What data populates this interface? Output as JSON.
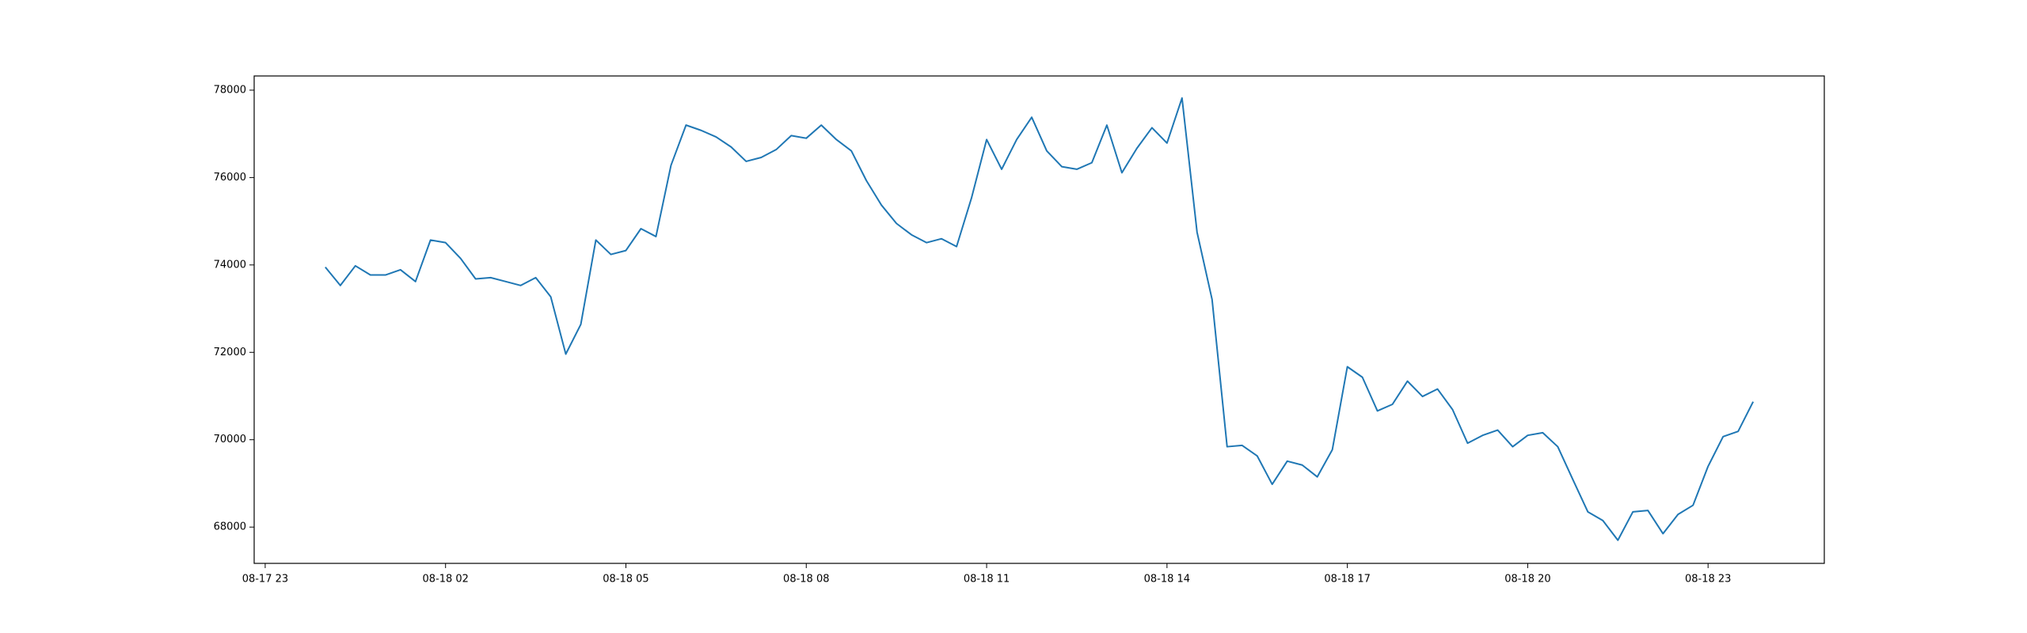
{
  "chart_data": {
    "type": "line",
    "x": [
      "08-18 00:00",
      "08-18 00:15",
      "08-18 00:30",
      "08-18 00:45",
      "08-18 01:00",
      "08-18 01:15",
      "08-18 01:30",
      "08-18 01:45",
      "08-18 02:00",
      "08-18 02:15",
      "08-18 02:30",
      "08-18 02:45",
      "08-18 03:00",
      "08-18 03:15",
      "08-18 03:30",
      "08-18 03:45",
      "08-18 04:00",
      "08-18 04:15",
      "08-18 04:30",
      "08-18 04:45",
      "08-18 05:00",
      "08-18 05:15",
      "08-18 05:30",
      "08-18 05:45",
      "08-18 06:00",
      "08-18 06:15",
      "08-18 06:30",
      "08-18 06:45",
      "08-18 07:00",
      "08-18 07:15",
      "08-18 07:30",
      "08-18 07:45",
      "08-18 08:00",
      "08-18 08:15",
      "08-18 08:30",
      "08-18 08:45",
      "08-18 09:00",
      "08-18 09:15",
      "08-18 09:30",
      "08-18 09:45",
      "08-18 10:00",
      "08-18 10:15",
      "08-18 10:30",
      "08-18 10:45",
      "08-18 11:00",
      "08-18 11:15",
      "08-18 11:30",
      "08-18 11:45",
      "08-18 12:00",
      "08-18 12:15",
      "08-18 12:30",
      "08-18 12:45",
      "08-18 13:00",
      "08-18 13:15",
      "08-18 13:30",
      "08-18 13:45",
      "08-18 14:00",
      "08-18 14:15",
      "08-18 14:30",
      "08-18 14:45",
      "08-18 15:00",
      "08-18 15:15",
      "08-18 15:30",
      "08-18 15:45",
      "08-18 16:00",
      "08-18 16:15",
      "08-18 16:30",
      "08-18 16:45",
      "08-18 17:00",
      "08-18 17:15",
      "08-18 17:30",
      "08-18 17:45",
      "08-18 18:00",
      "08-18 18:15",
      "08-18 18:30",
      "08-18 18:45",
      "08-18 19:00",
      "08-18 19:15",
      "08-18 19:30",
      "08-18 19:45",
      "08-18 20:00",
      "08-18 20:15",
      "08-18 20:30",
      "08-18 20:45",
      "08-18 21:00",
      "08-18 21:15",
      "08-18 21:30",
      "08-18 21:45",
      "08-18 22:00",
      "08-18 22:15",
      "08-18 22:30",
      "08-18 22:45",
      "08-18 23:00",
      "08-18 23:15",
      "08-18 23:30",
      "08-18 23:45"
    ],
    "values": [
      73950,
      73530,
      73980,
      73770,
      73770,
      73890,
      73620,
      74570,
      74510,
      74150,
      73680,
      73710,
      73620,
      73530,
      73710,
      73270,
      71960,
      72640,
      74570,
      74240,
      74330,
      74830,
      74650,
      76280,
      77200,
      77080,
      76930,
      76700,
      76370,
      76460,
      76640,
      76960,
      76900,
      77200,
      76870,
      76610,
      75930,
      75370,
      74950,
      74690,
      74510,
      74600,
      74420,
      75540,
      76870,
      76190,
      76870,
      77380,
      76610,
      76250,
      76190,
      76340,
      77200,
      76110,
      76670,
      77140,
      76790,
      77820,
      74750,
      73210,
      69840,
      69870,
      69630,
      68980,
      69510,
      69420,
      69150,
      69770,
      71670,
      71430,
      70660,
      70810,
      71340,
      70990,
      71160,
      70690,
      69920,
      70100,
      70220,
      69840,
      70100,
      70160,
      69840,
      69090,
      68350,
      68150,
      67700,
      68350,
      68380,
      67850,
      68290,
      68500,
      69390,
      70070,
      70190,
      70870
    ],
    "color": "#1f77b4",
    "xlim": [
      "08-17 22:49",
      "08-19 00:56"
    ],
    "xticks": [
      "08-17 23",
      "08-18 02",
      "08-18 05",
      "08-18 08",
      "08-18 11",
      "08-18 14",
      "08-18 17",
      "08-18 20",
      "08-18 23"
    ],
    "ylim": [
      67170,
      78325
    ],
    "yticks": [
      68000,
      70000,
      72000,
      74000,
      76000,
      78000
    ]
  }
}
